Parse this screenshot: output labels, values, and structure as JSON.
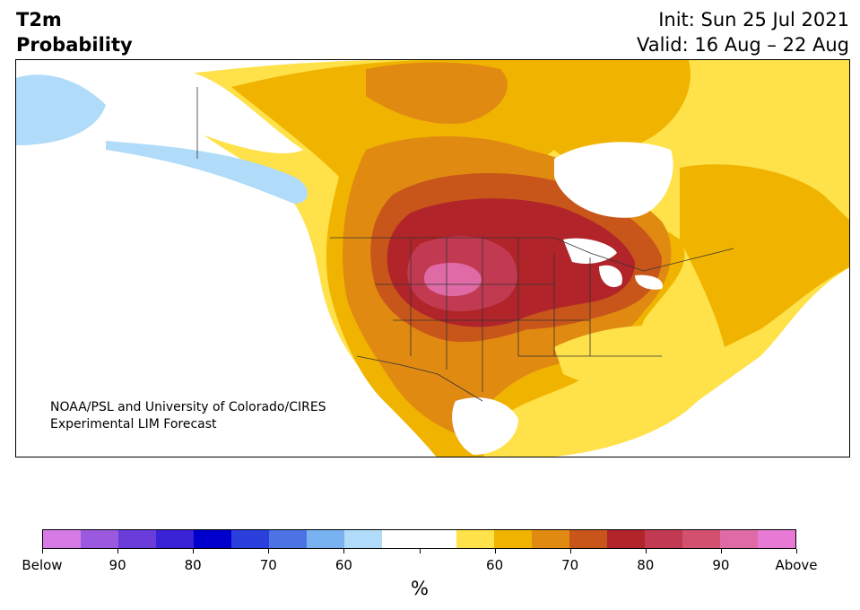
{
  "title": {
    "line1": "T2m",
    "line2": "Probability"
  },
  "info": {
    "init": "Init: Sun 25 Jul 2021",
    "valid": "Valid: 16 Aug – 22 Aug"
  },
  "credit": {
    "line1": "NOAA/PSL and University of Colorado/CIRES",
    "line2": "Experimental LIM Forecast"
  },
  "colorbar": {
    "colors": [
      "#d67be6",
      "#9b59e0",
      "#6a3ddb",
      "#3a22d6",
      "#0000cc",
      "#2a3fdc",
      "#4c73e4",
      "#79b2f0",
      "#b0dcfa",
      "#ffffff",
      "#ffffff",
      "#ffe14a",
      "#f0b400",
      "#e08a12",
      "#c8561a",
      "#b0242a",
      "#c23a52",
      "#d3506e",
      "#df6aa6",
      "#e87ad6"
    ],
    "tick_labels": [
      "Below",
      "90",
      "80",
      "70",
      "60",
      "",
      "60",
      "70",
      "80",
      "90",
      "Above"
    ],
    "unit": "%"
  }
}
